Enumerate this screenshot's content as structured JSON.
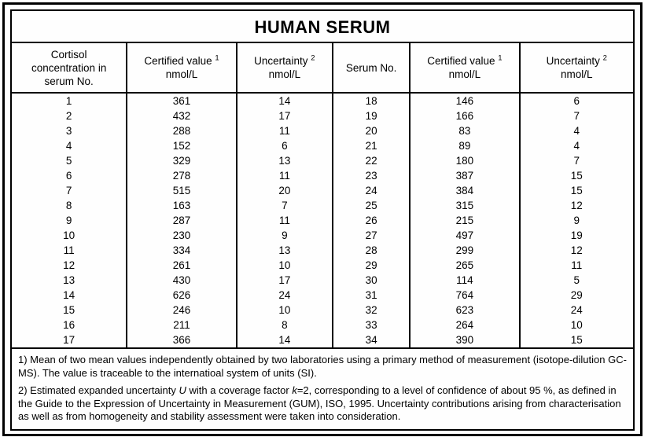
{
  "title": "HUMAN SERUM",
  "table": {
    "columns": [
      {
        "lines": [
          "Cortisol",
          "concentration in",
          "serum No."
        ],
        "sup": null
      },
      {
        "lines": [
          "Certified value",
          "nmol/L"
        ],
        "sup": "1"
      },
      {
        "lines": [
          "Uncertainty",
          "nmol/L"
        ],
        "sup": "2"
      },
      {
        "lines": [
          "Serum No."
        ],
        "sup": null
      },
      {
        "lines": [
          "Certified value",
          "nmol/L"
        ],
        "sup": "1"
      },
      {
        "lines": [
          "Uncertainty",
          "nmol/L"
        ],
        "sup": "2"
      }
    ],
    "rows": [
      [
        "1",
        "361",
        "14",
        "18",
        "146",
        "6"
      ],
      [
        "2",
        "432",
        "17",
        "19",
        "166",
        "7"
      ],
      [
        "3",
        "288",
        "11",
        "20",
        "83",
        "4"
      ],
      [
        "4",
        "152",
        "6",
        "21",
        "89",
        "4"
      ],
      [
        "5",
        "329",
        "13",
        "22",
        "180",
        "7"
      ],
      [
        "6",
        "278",
        "11",
        "23",
        "387",
        "15"
      ],
      [
        "7",
        "515",
        "20",
        "24",
        "384",
        "15"
      ],
      [
        "8",
        "163",
        "7",
        "25",
        "315",
        "12"
      ],
      [
        "9",
        "287",
        "11",
        "26",
        "215",
        "9"
      ],
      [
        "10",
        "230",
        "9",
        "27",
        "497",
        "19"
      ],
      [
        "11",
        "334",
        "13",
        "28",
        "299",
        "12"
      ],
      [
        "12",
        "261",
        "10",
        "29",
        "265",
        "11"
      ],
      [
        "13",
        "430",
        "17",
        "30",
        "114",
        "5"
      ],
      [
        "14",
        "626",
        "24",
        "31",
        "764",
        "29"
      ],
      [
        "15",
        "246",
        "10",
        "32",
        "623",
        "24"
      ],
      [
        "16",
        "211",
        "8",
        "33",
        "264",
        "10"
      ],
      [
        "17",
        "366",
        "14",
        "34",
        "390",
        "15"
      ]
    ]
  },
  "footnotes": [
    {
      "segments": [
        {
          "t": "1) Mean of two mean values independently obtained by two laboratories using a primary method of measurement (isotope-dilution GC-MS). The value is traceable to the internatioal system of units (SI).",
          "i": false
        }
      ]
    },
    {
      "segments": [
        {
          "t": "2) Estimated expanded uncertainty ",
          "i": false
        },
        {
          "t": "U",
          "i": true
        },
        {
          "t": " with a coverage factor ",
          "i": false
        },
        {
          "t": "k",
          "i": true
        },
        {
          "t": "=2, corresponding to a level of confidence of about 95 %, as defined in the Guide to the Expression of Uncertainty in Measurement (GUM), ISO, 1995. Uncertainty contributions arising from characterisation as well as from homogeneity and stability assessment were taken into consideration.",
          "i": false
        }
      ]
    }
  ]
}
